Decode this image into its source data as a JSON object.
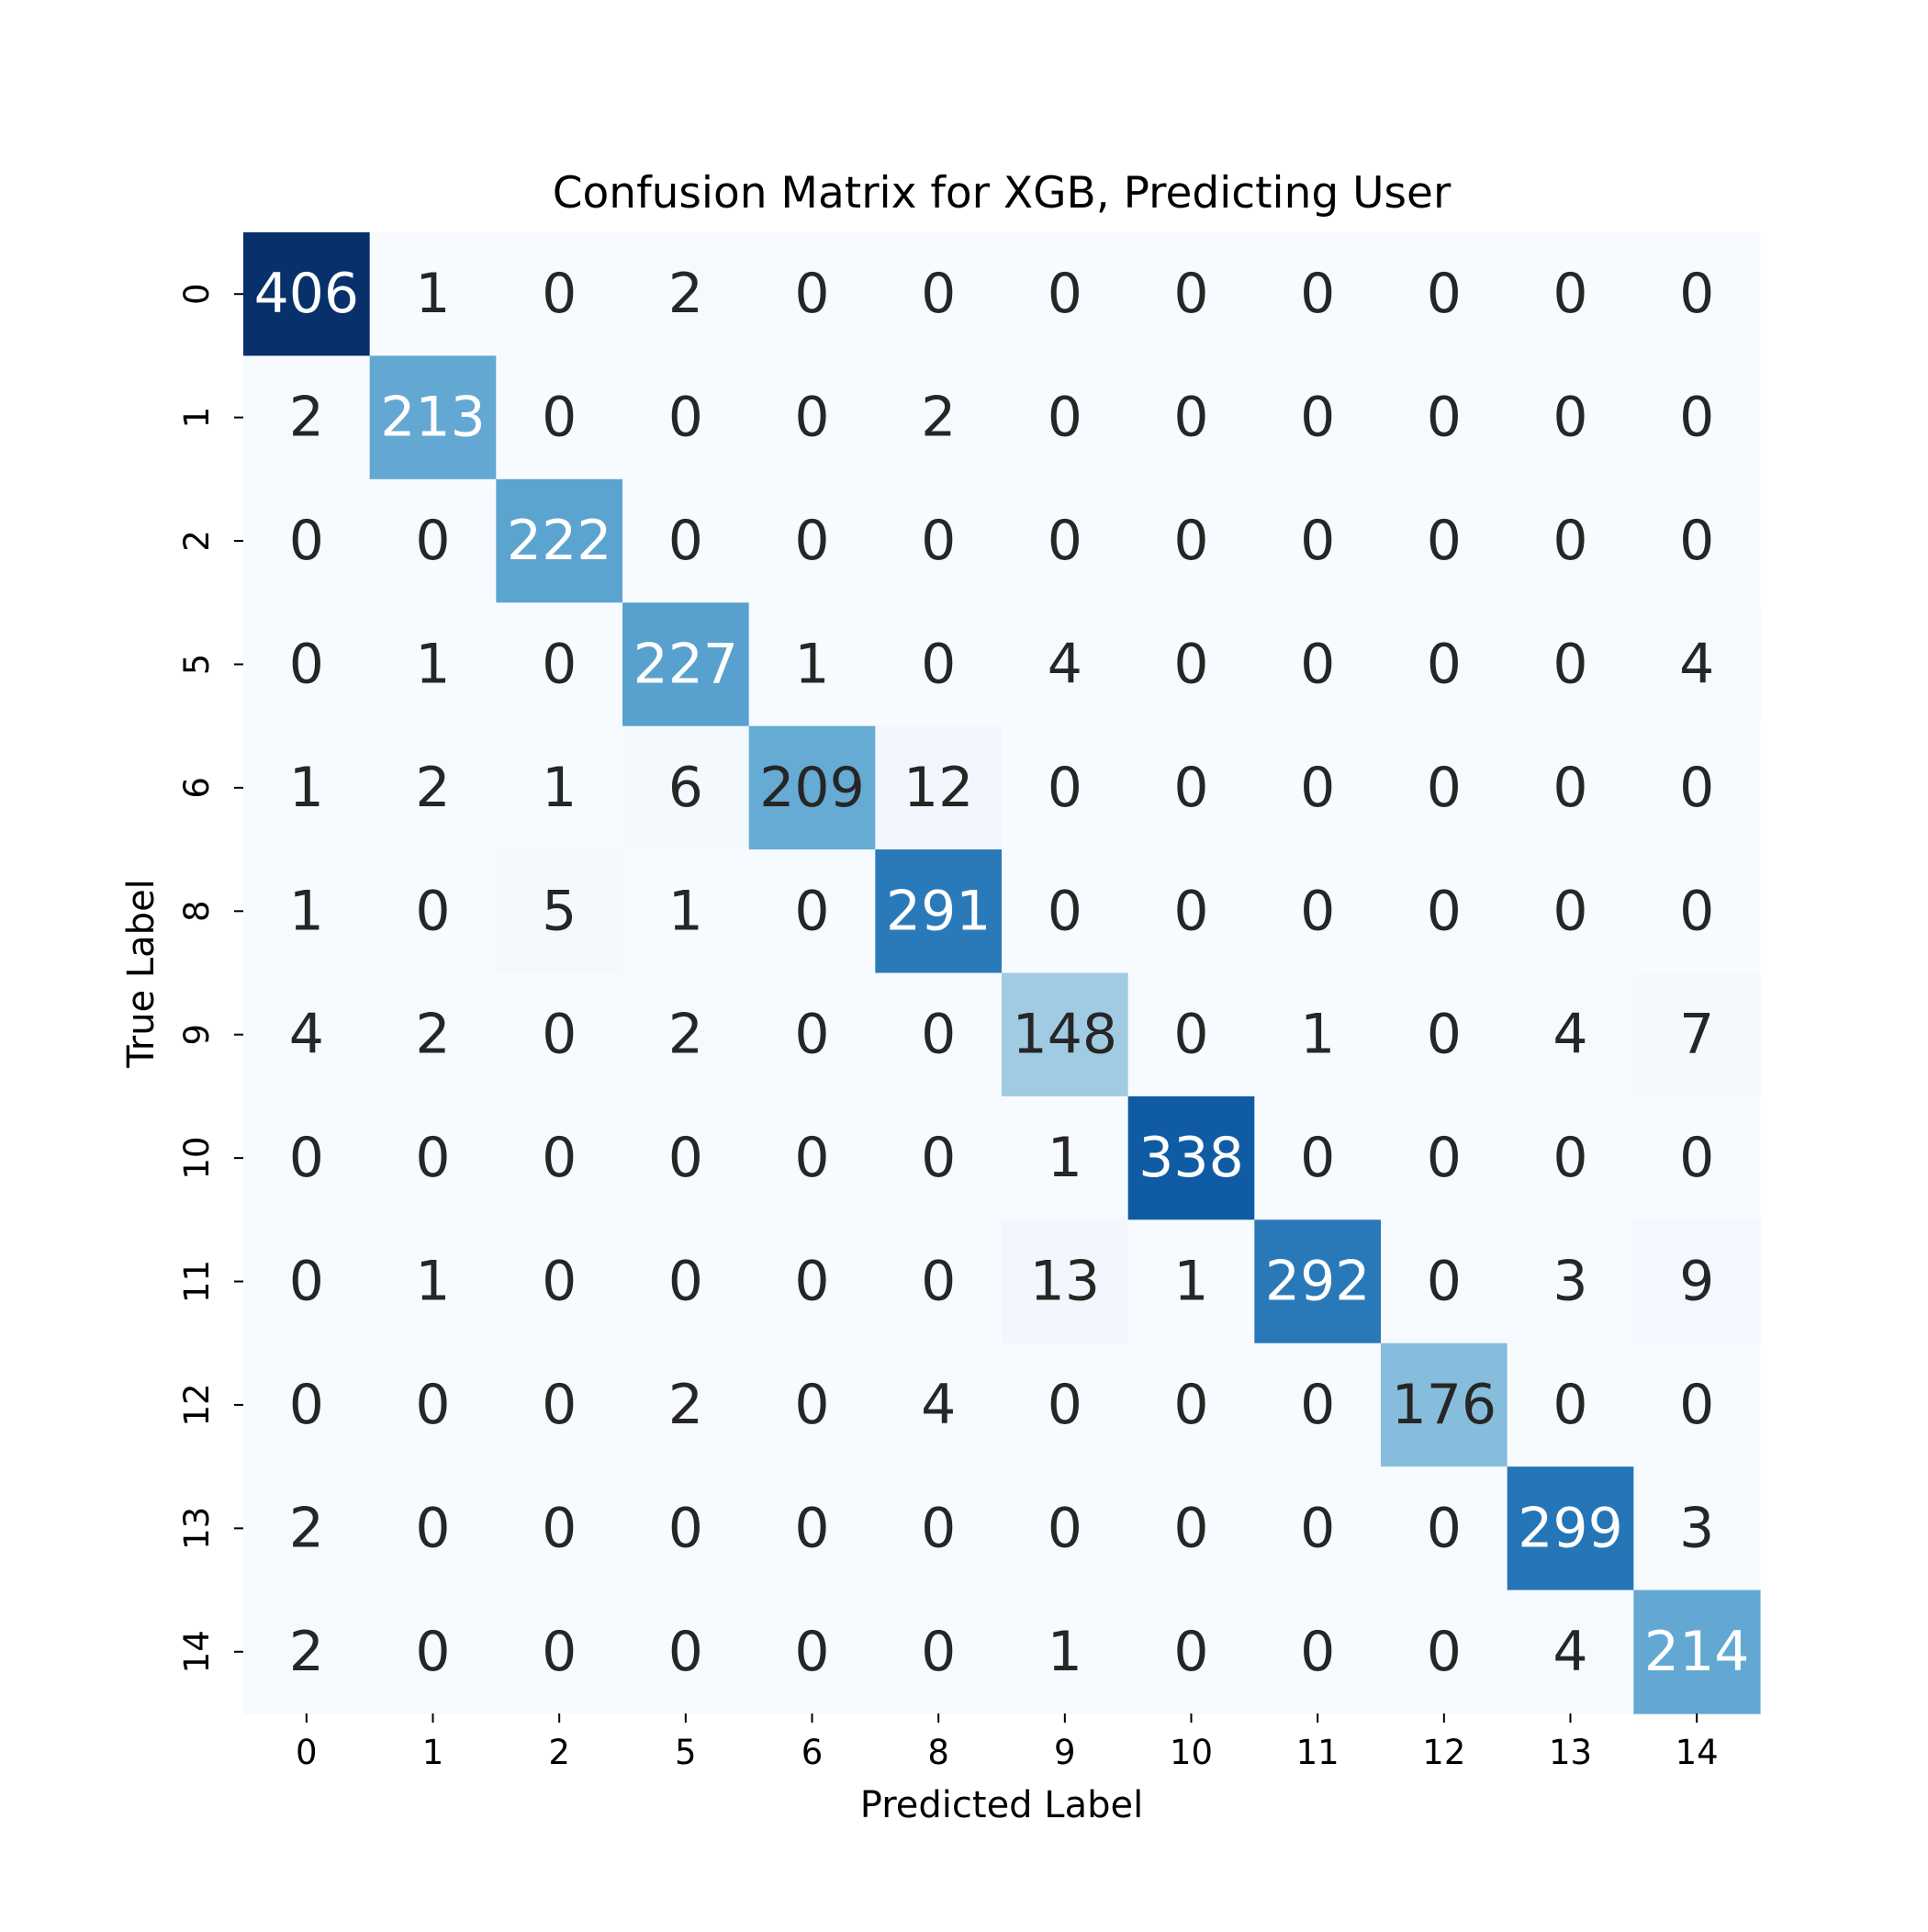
{
  "chart_data": {
    "type": "heatmap",
    "title": "Confusion Matrix for XGB, Predicting User",
    "xlabel": "Predicted Label",
    "ylabel": "True Label",
    "x_categories": [
      "0",
      "1",
      "2",
      "5",
      "6",
      "8",
      "9",
      "10",
      "11",
      "12",
      "13",
      "14"
    ],
    "y_categories": [
      "0",
      "1",
      "2",
      "5",
      "6",
      "8",
      "9",
      "10",
      "11",
      "12",
      "13",
      "14"
    ],
    "values": [
      [
        406,
        1,
        0,
        2,
        0,
        0,
        0,
        0,
        0,
        0,
        0,
        0
      ],
      [
        2,
        213,
        0,
        0,
        0,
        2,
        0,
        0,
        0,
        0,
        0,
        0
      ],
      [
        0,
        0,
        222,
        0,
        0,
        0,
        0,
        0,
        0,
        0,
        0,
        0
      ],
      [
        0,
        1,
        0,
        227,
        1,
        0,
        4,
        0,
        0,
        0,
        0,
        4
      ],
      [
        1,
        2,
        1,
        6,
        209,
        12,
        0,
        0,
        0,
        0,
        0,
        0
      ],
      [
        1,
        0,
        5,
        1,
        0,
        291,
        0,
        0,
        0,
        0,
        0,
        0
      ],
      [
        4,
        2,
        0,
        2,
        0,
        0,
        148,
        0,
        1,
        0,
        4,
        7
      ],
      [
        0,
        0,
        0,
        0,
        0,
        0,
        1,
        338,
        0,
        0,
        0,
        0
      ],
      [
        0,
        1,
        0,
        0,
        0,
        0,
        13,
        1,
        292,
        0,
        3,
        9
      ],
      [
        0,
        0,
        0,
        2,
        0,
        4,
        0,
        0,
        0,
        176,
        0,
        0
      ],
      [
        2,
        0,
        0,
        0,
        0,
        0,
        0,
        0,
        0,
        0,
        299,
        3
      ],
      [
        2,
        0,
        0,
        0,
        0,
        0,
        1,
        0,
        0,
        0,
        4,
        214
      ]
    ],
    "colormap": "Blues",
    "vmin": 0,
    "vmax": 406,
    "colorbar": false,
    "grid": false,
    "text_color_dark": "#262626",
    "text_color_light": "#ffffff"
  }
}
